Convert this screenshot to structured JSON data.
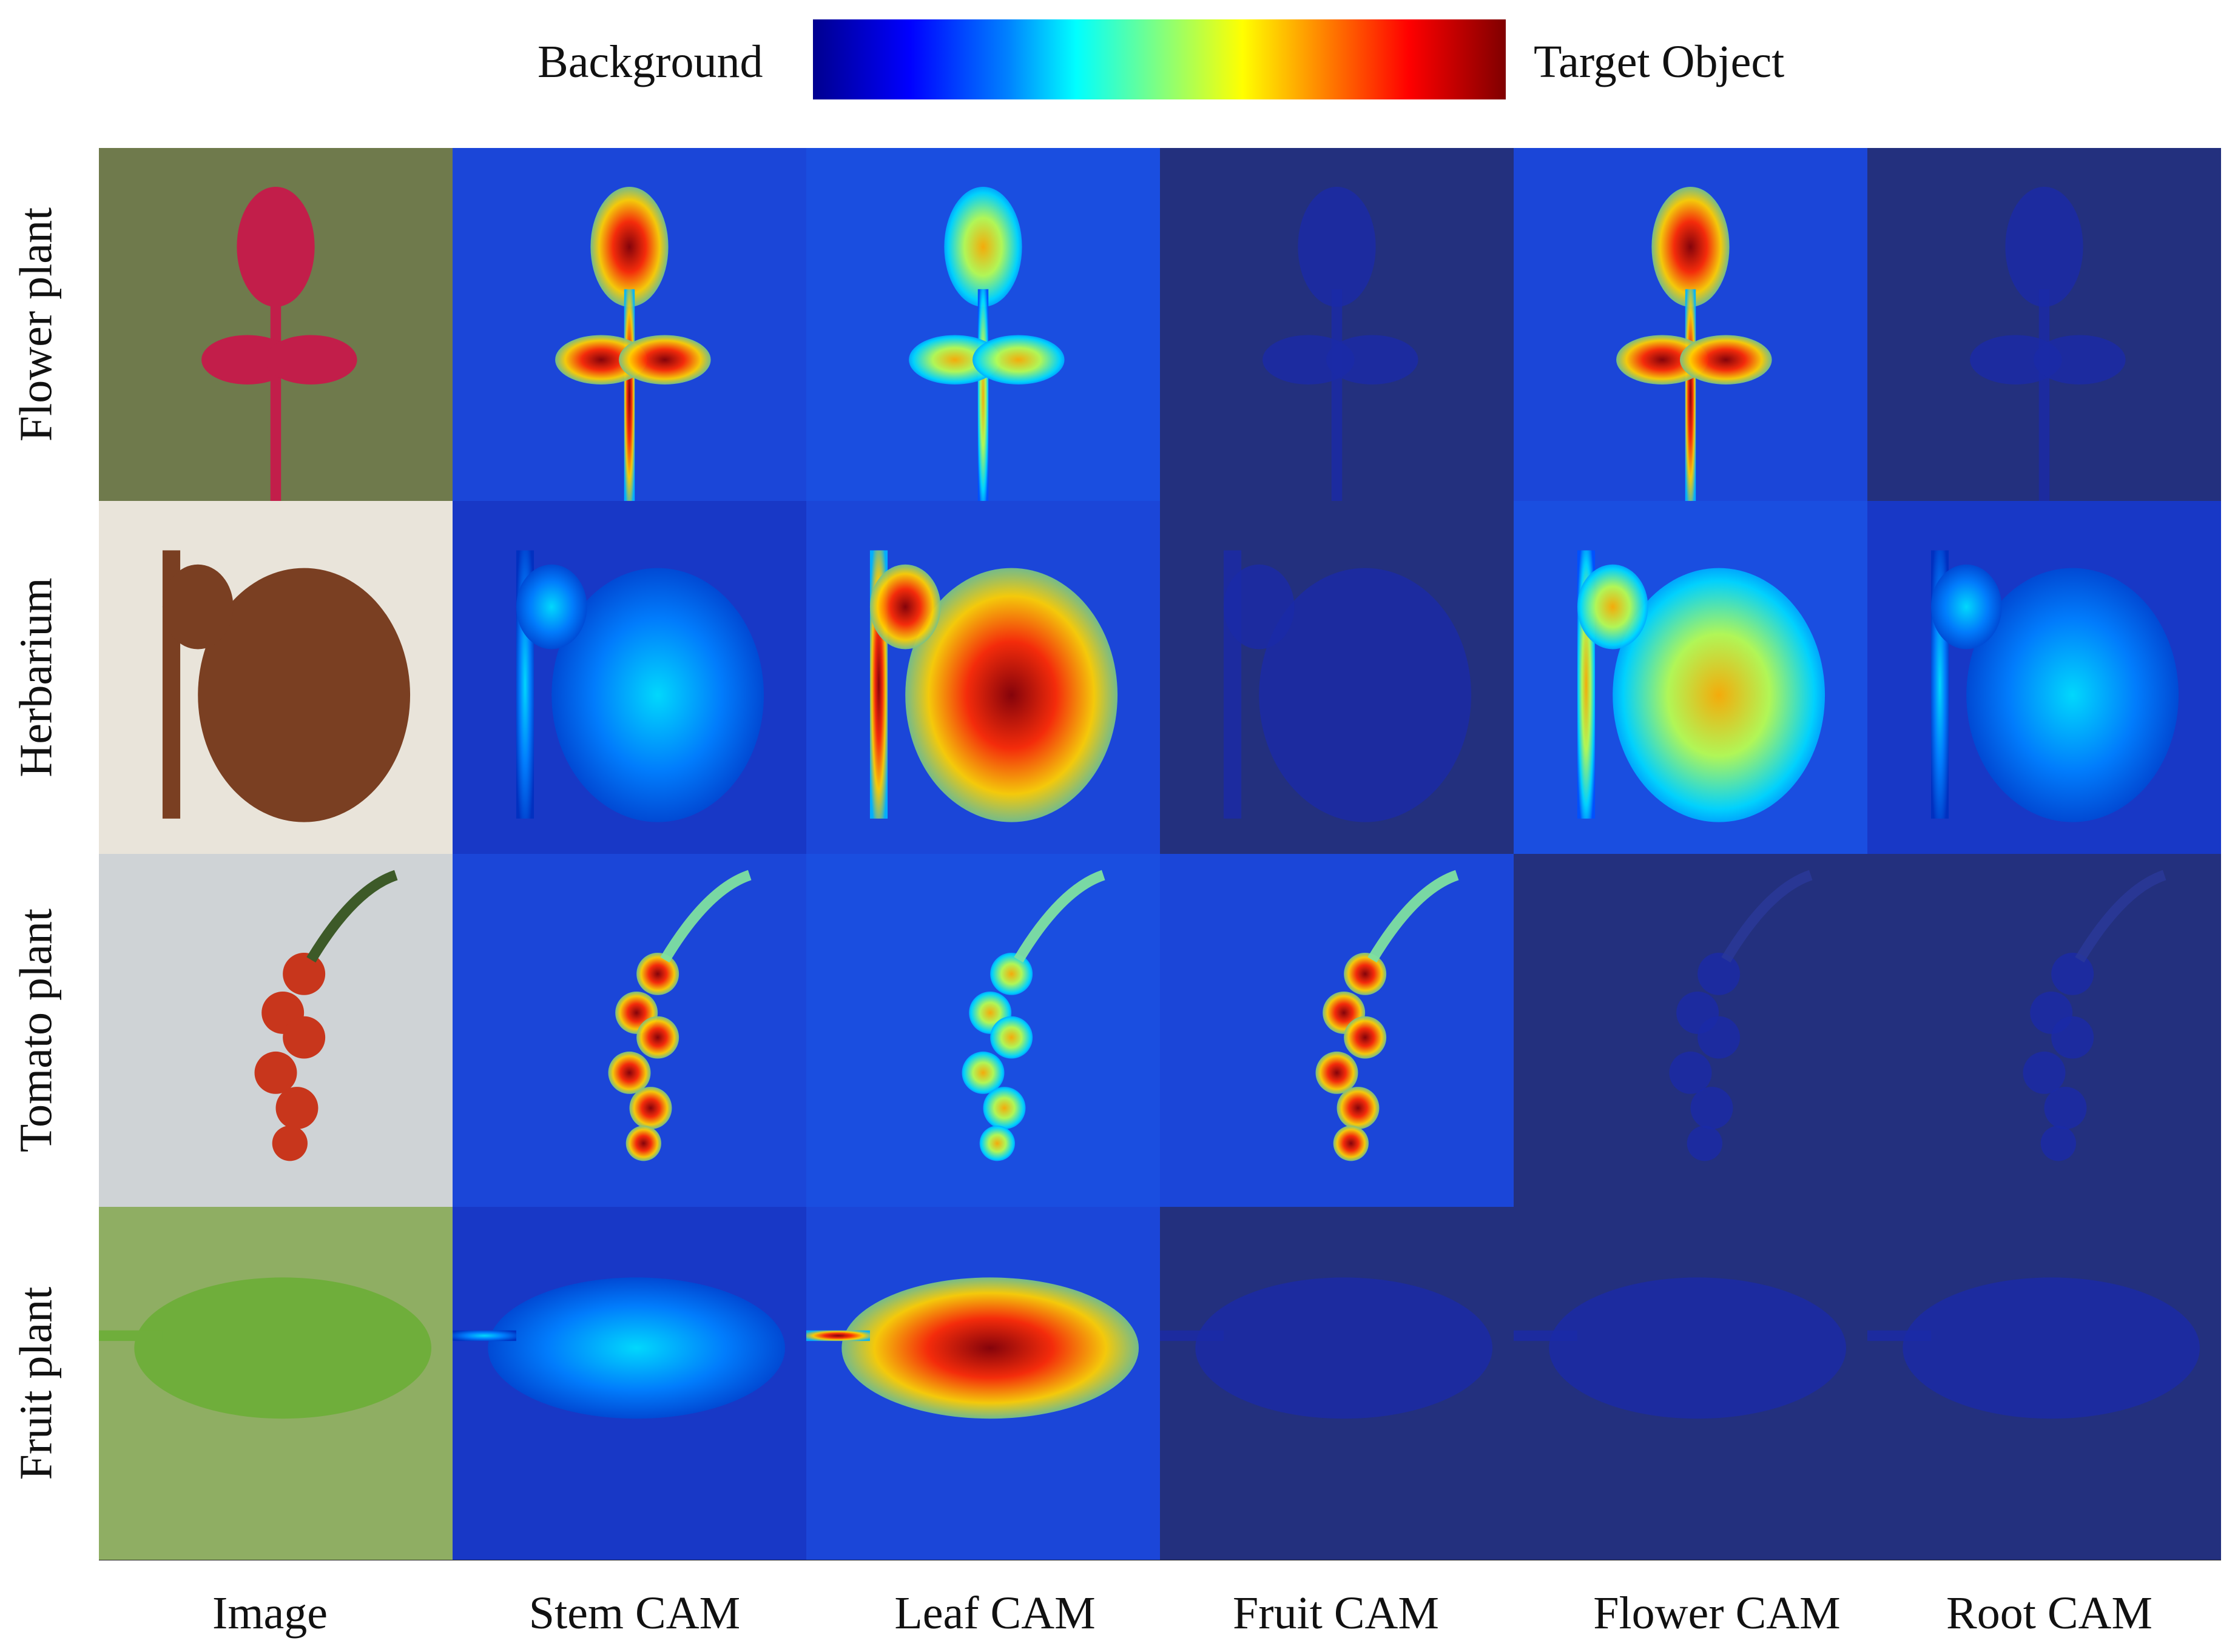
{
  "legend": {
    "left_label": "Background",
    "right_label": "Target Object"
  },
  "rows": [
    "Flower plant",
    "Herbarium",
    "Tomato plant",
    "Fruit plant"
  ],
  "columns": [
    "Image",
    "Stem CAM",
    "Leaf CAM",
    "Fruit CAM",
    "Flower CAM",
    "Root CAM"
  ],
  "colors": {
    "low": "#00008f",
    "mid": "#00ffff",
    "high": "#ff0000",
    "frame": "#222222"
  },
  "activation_levels": [
    [
      null,
      "high",
      "medium",
      "none",
      "high",
      "none"
    ],
    [
      null,
      "low",
      "high",
      "none",
      "medium",
      "low"
    ],
    [
      null,
      "high",
      "medium",
      "high",
      "none",
      "none"
    ],
    [
      null,
      "low",
      "high",
      "none",
      "none",
      "none"
    ]
  ]
}
